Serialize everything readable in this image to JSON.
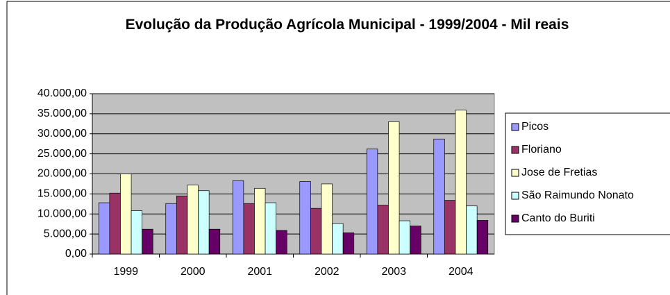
{
  "chart_data": {
    "type": "bar",
    "title": "Evolução da Produção Agrícola Municipal - 1999/2004 - Mil reais",
    "categories": [
      "1999",
      "2000",
      "2001",
      "2002",
      "2003",
      "2004"
    ],
    "series": [
      {
        "name": "Picos",
        "color": "#9999ff",
        "values": [
          12800,
          12600,
          18300,
          18100,
          26200,
          28700
        ]
      },
      {
        "name": "Floriano",
        "color": "#993366",
        "values": [
          15200,
          14500,
          12600,
          11400,
          12200,
          13400
        ]
      },
      {
        "name": "Jose de Fretias",
        "color": "#ffffcc",
        "values": [
          20000,
          17200,
          16400,
          17500,
          33000,
          35900
        ]
      },
      {
        "name": "São Raimundo Nonato",
        "color": "#ccffff",
        "values": [
          10800,
          15800,
          12800,
          7600,
          8300,
          12000
        ]
      },
      {
        "name": "Canto do Buriti",
        "color": "#660066",
        "values": [
          6200,
          6200,
          5900,
          5300,
          7000,
          8400
        ]
      }
    ],
    "ylim": [
      0,
      40000
    ],
    "yticks": [
      {
        "value": 0,
        "label": "0,00"
      },
      {
        "value": 5000,
        "label": "5.000,00"
      },
      {
        "value": 10000,
        "label": "10.000,00"
      },
      {
        "value": 15000,
        "label": "15.000,00"
      },
      {
        "value": 20000,
        "label": "20.000,00"
      },
      {
        "value": 25000,
        "label": "25.000,00"
      },
      {
        "value": 30000,
        "label": "30.000,00"
      },
      {
        "value": 35000,
        "label": "35.000,00"
      },
      {
        "value": 40000,
        "label": "40.000,00"
      }
    ],
    "grid": true,
    "legend": "right"
  }
}
